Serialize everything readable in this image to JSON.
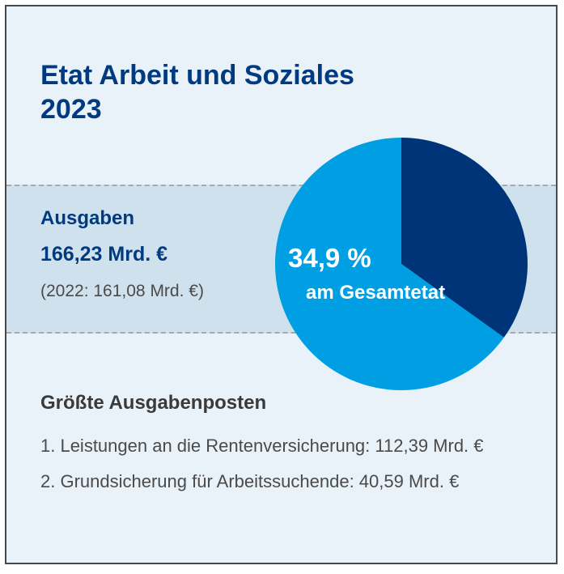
{
  "title_line1": "Etat Arbeit und Soziales",
  "title_line2": "2023",
  "summary": {
    "label": "Ausgaben",
    "value": "166,23 Mrd. €",
    "previous": "(2022: 161,08 Mrd. €)"
  },
  "chart_data": {
    "type": "pie",
    "slices": [
      {
        "label": "",
        "value": 34.9,
        "color": "#003478"
      },
      {
        "label": "",
        "value": 65.1,
        "color": "#009fe3"
      }
    ],
    "center_label_value": "34,9 %",
    "center_label_text": "am Gesamtetat"
  },
  "posts": {
    "heading": "Größte Ausgabenposten",
    "items": [
      "1. Leistungen an die Rentenversicherung: 112,39 Mrd. €",
      "2. Grundsicherung für Arbeitssuchende: 40,59 Mrd. €"
    ]
  },
  "colors": {
    "title": "#003a80",
    "band": "#cfe1ec",
    "background": "#eaf2f9"
  }
}
